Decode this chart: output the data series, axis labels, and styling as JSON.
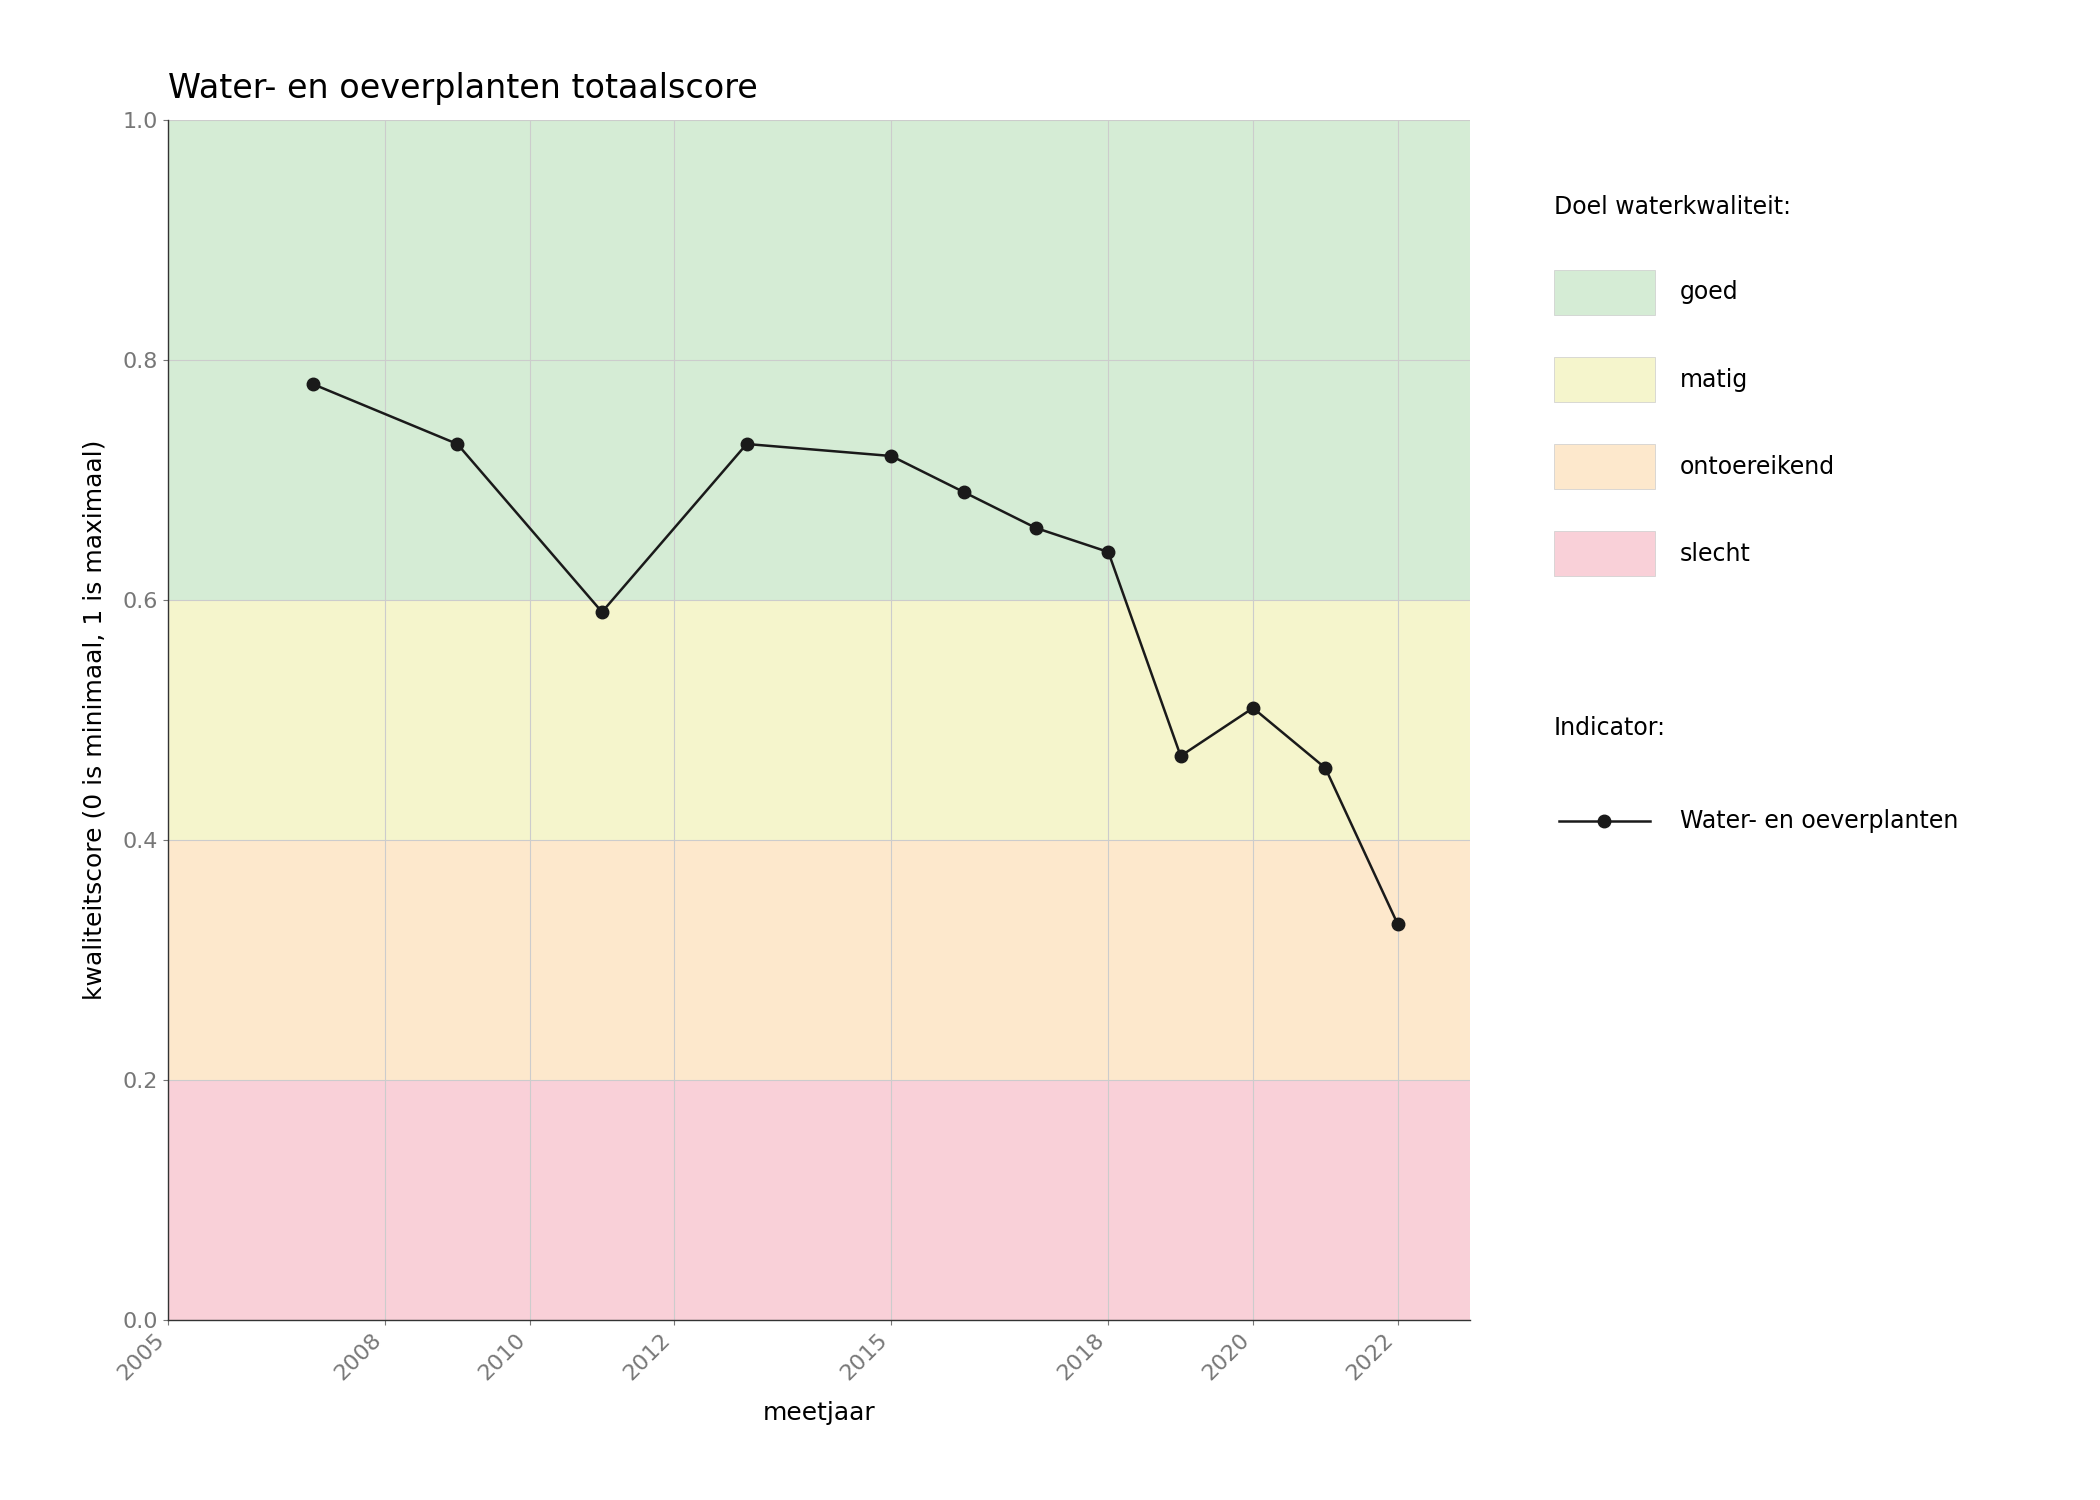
{
  "title": "Water- en oeverplanten totaalscore",
  "xlabel": "meetjaar",
  "ylabel": "kwaliteitscore (0 is minimaal, 1 is maximaal)",
  "years": [
    2007,
    2009,
    2011,
    2013,
    2015,
    2016,
    2017,
    2018,
    2019,
    2020,
    2021,
    2022
  ],
  "values": [
    0.78,
    0.73,
    0.59,
    0.73,
    0.72,
    0.69,
    0.66,
    0.64,
    0.47,
    0.51,
    0.46,
    0.33
  ],
  "xlim": [
    2005,
    2023
  ],
  "ylim": [
    0.0,
    1.0
  ],
  "xticks": [
    2005,
    2008,
    2010,
    2012,
    2015,
    2018,
    2020,
    2022
  ],
  "yticks": [
    0.0,
    0.2,
    0.4,
    0.6,
    0.8,
    1.0
  ],
  "bg_zones": [
    {
      "ymin": 0.6,
      "ymax": 1.0,
      "color": "#d5ecd5",
      "label": "goed"
    },
    {
      "ymin": 0.4,
      "ymax": 0.6,
      "color": "#f5f5cc",
      "label": "matig"
    },
    {
      "ymin": 0.2,
      "ymax": 0.4,
      "color": "#fde8cc",
      "label": "ontoereikend"
    },
    {
      "ymin": 0.0,
      "ymax": 0.2,
      "color": "#f9d0d8",
      "label": "slecht"
    }
  ],
  "legend_title_doel": "Doel waterkwaliteit:",
  "legend_title_indicator": "Indicator:",
  "indicator_label": "Water- en oeverplanten",
  "line_color": "#1a1a1a",
  "marker_color": "#1a1a1a",
  "marker_size": 9,
  "line_width": 1.8,
  "grid_color": "#cccccc",
  "background_color": "#ffffff",
  "title_fontsize": 24,
  "label_fontsize": 18,
  "tick_fontsize": 16,
  "legend_title_fontsize": 17,
  "legend_fontsize": 17
}
